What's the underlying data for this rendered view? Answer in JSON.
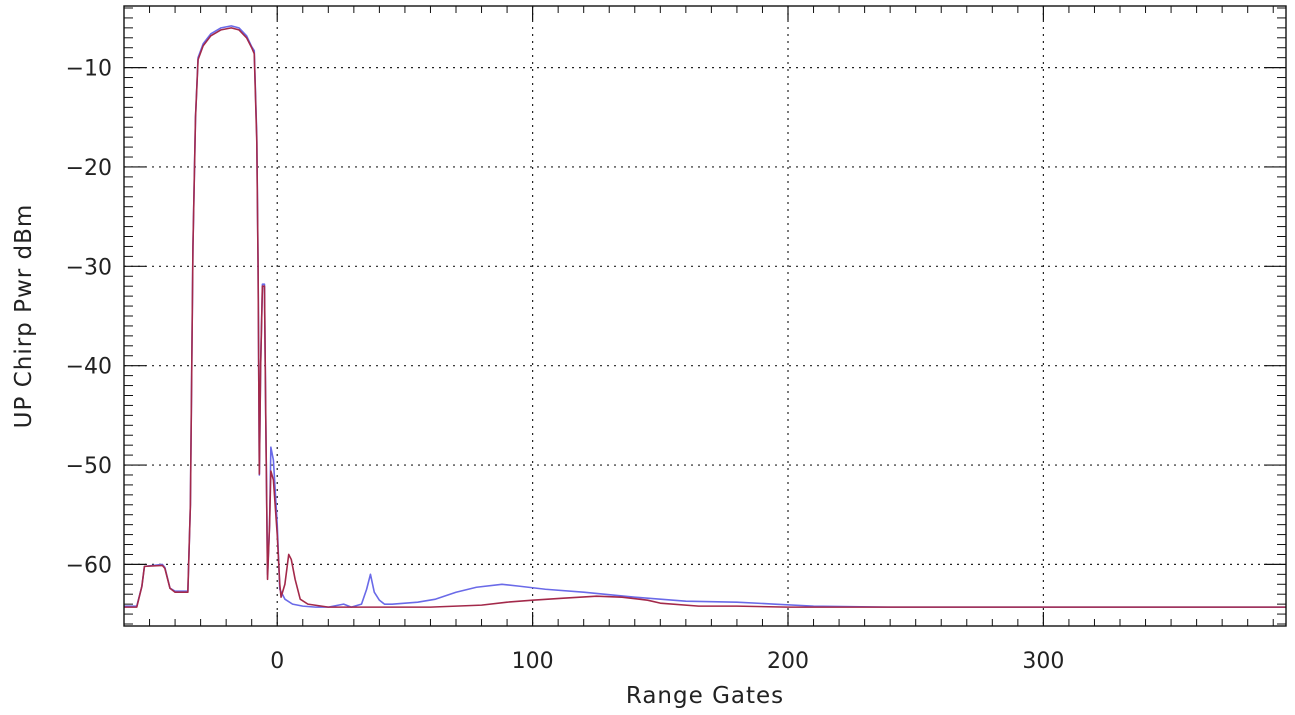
{
  "chart_data": {
    "type": "line",
    "xlabel": "Range Gates",
    "ylabel": "UP Chirp Pwr dBm",
    "xlim": [
      -60,
      395
    ],
    "ylim": [
      -66.2,
      -3.8
    ],
    "x_ticks": [
      0,
      100,
      200,
      300
    ],
    "y_ticks": [
      -10,
      -20,
      -30,
      -40,
      -50,
      -60
    ],
    "grid": true,
    "series": [
      {
        "color": "#6a6ae8",
        "points": [
          [
            -60,
            -64.2
          ],
          [
            -55,
            -64.2
          ],
          [
            -53,
            -62.2
          ],
          [
            -52,
            -60.2
          ],
          [
            -45,
            -60.0
          ],
          [
            -44,
            -60.3
          ],
          [
            -42,
            -62.4
          ],
          [
            -40,
            -62.7
          ],
          [
            -35,
            -62.7
          ],
          [
            -34,
            -54
          ],
          [
            -33,
            -28
          ],
          [
            -32,
            -15
          ],
          [
            -31,
            -9
          ],
          [
            -29,
            -7.6
          ],
          [
            -26,
            -6.6
          ],
          [
            -22,
            -6.0
          ],
          [
            -18,
            -5.8
          ],
          [
            -15,
            -6.0
          ],
          [
            -12,
            -6.8
          ],
          [
            -10,
            -7.9
          ],
          [
            -9,
            -8.3
          ],
          [
            -8,
            -17
          ],
          [
            -7.5,
            -30
          ],
          [
            -7,
            -51
          ],
          [
            -6.5,
            -40
          ],
          [
            -5.8,
            -31.8
          ],
          [
            -5,
            -31.8
          ],
          [
            -4.5,
            -45
          ],
          [
            -3.8,
            -61
          ],
          [
            -3,
            -56
          ],
          [
            -2.5,
            -48.2
          ],
          [
            -1.5,
            -49.5
          ],
          [
            0,
            -56
          ],
          [
            1,
            -62.5
          ],
          [
            3,
            -63.5
          ],
          [
            6,
            -64.0
          ],
          [
            10,
            -64.2
          ],
          [
            15,
            -64.3
          ],
          [
            20,
            -64.3
          ],
          [
            26,
            -64.0
          ],
          [
            29,
            -64.3
          ],
          [
            33,
            -64.0
          ],
          [
            35,
            -62.5
          ],
          [
            36.5,
            -61.0
          ],
          [
            38,
            -62.8
          ],
          [
            40,
            -63.6
          ],
          [
            42,
            -64.0
          ],
          [
            45,
            -64.0
          ],
          [
            55,
            -63.8
          ],
          [
            62,
            -63.5
          ],
          [
            70,
            -62.8
          ],
          [
            78,
            -62.3
          ],
          [
            88,
            -62.0
          ],
          [
            95,
            -62.2
          ],
          [
            105,
            -62.5
          ],
          [
            120,
            -62.8
          ],
          [
            140,
            -63.3
          ],
          [
            160,
            -63.7
          ],
          [
            180,
            -63.8
          ],
          [
            195,
            -64.0
          ],
          [
            210,
            -64.2
          ],
          [
            240,
            -64.3
          ],
          [
            300,
            -64.3
          ],
          [
            395,
            -64.3
          ]
        ]
      },
      {
        "color": "#a3294a",
        "points": [
          [
            -60,
            -64.3
          ],
          [
            -55,
            -64.3
          ],
          [
            -53,
            -62.2
          ],
          [
            -52,
            -60.2
          ],
          [
            -45,
            -60.1
          ],
          [
            -44,
            -60.4
          ],
          [
            -42,
            -62.4
          ],
          [
            -40,
            -62.8
          ],
          [
            -35,
            -62.8
          ],
          [
            -34,
            -54
          ],
          [
            -33,
            -28
          ],
          [
            -32,
            -15
          ],
          [
            -31,
            -9.2
          ],
          [
            -29,
            -7.8
          ],
          [
            -26,
            -6.8
          ],
          [
            -22,
            -6.2
          ],
          [
            -18,
            -6.0
          ],
          [
            -15,
            -6.2
          ],
          [
            -12,
            -7.0
          ],
          [
            -10,
            -8.0
          ],
          [
            -9,
            -8.6
          ],
          [
            -8,
            -17.5
          ],
          [
            -7.5,
            -30
          ],
          [
            -7,
            -50.9
          ],
          [
            -6.5,
            -40
          ],
          [
            -5.8,
            -32.0
          ],
          [
            -5,
            -32.0
          ],
          [
            -4.5,
            -45
          ],
          [
            -3.8,
            -61.5
          ],
          [
            -3,
            -56
          ],
          [
            -2.5,
            -50.6
          ],
          [
            -1.5,
            -51.5
          ],
          [
            0,
            -57
          ],
          [
            1,
            -62.0
          ],
          [
            1.5,
            -63.3
          ],
          [
            3,
            -62.0
          ],
          [
            4.5,
            -59.0
          ],
          [
            5.5,
            -59.5
          ],
          [
            7,
            -61.5
          ],
          [
            9,
            -63.5
          ],
          [
            12,
            -64.0
          ],
          [
            20,
            -64.3
          ],
          [
            40,
            -64.3
          ],
          [
            60,
            -64.3
          ],
          [
            80,
            -64.1
          ],
          [
            90,
            -63.8
          ],
          [
            100,
            -63.6
          ],
          [
            112,
            -63.4
          ],
          [
            125,
            -63.2
          ],
          [
            135,
            -63.3
          ],
          [
            145,
            -63.6
          ],
          [
            150,
            -63.9
          ],
          [
            165,
            -64.2
          ],
          [
            180,
            -64.2
          ],
          [
            200,
            -64.3
          ],
          [
            240,
            -64.3
          ],
          [
            300,
            -64.3
          ],
          [
            395,
            -64.3
          ]
        ]
      }
    ]
  }
}
